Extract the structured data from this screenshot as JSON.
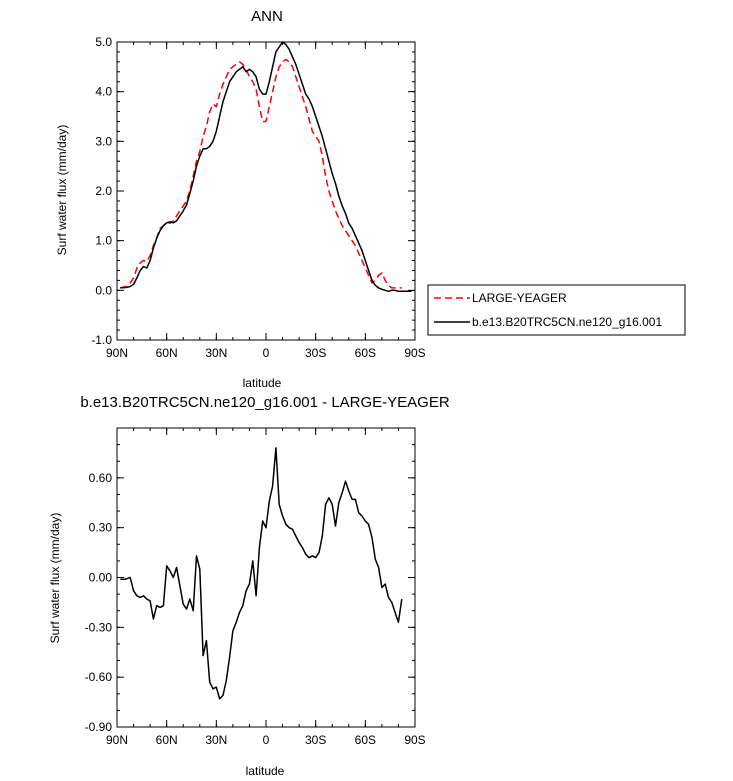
{
  "chart_data": [
    {
      "type": "line",
      "title": "ANN",
      "xlabel": "latitude",
      "ylabel": "Surf water flux (mm/day)",
      "xlim": [
        -90,
        90
      ],
      "ylim": [
        -1.0,
        5.0
      ],
      "x_tick_labels": [
        "90N",
        "60N",
        "30N",
        "0",
        "30S",
        "60S",
        "90S"
      ],
      "y_tick_labels": [
        "-1.0",
        "0.0",
        "1.0",
        "2.0",
        "3.0",
        "4.0",
        "5.0"
      ],
      "legend_position": "right",
      "series": [
        {
          "name": "LARGE-YEAGER",
          "color": "#ff0000",
          "dash": "dashed",
          "x": [
            -88,
            -84,
            -82,
            -80,
            -78,
            -76,
            -74,
            -72,
            -70,
            -68,
            -66,
            -64,
            -62,
            -60,
            -58,
            -56,
            -54,
            -52,
            -50,
            -48,
            -46,
            -44,
            -42,
            -40,
            -38,
            -36,
            -34,
            -32,
            -30,
            -28,
            -26,
            -24,
            -22,
            -20,
            -18,
            -16,
            -14,
            -12,
            -10,
            -8,
            -6,
            -4,
            -2,
            0,
            2,
            4,
            6,
            8,
            10,
            12,
            14,
            16,
            18,
            20,
            22,
            24,
            26,
            28,
            30,
            32,
            34,
            36,
            38,
            40,
            42,
            44,
            46,
            48,
            50,
            52,
            54,
            56,
            58,
            60,
            62,
            64,
            66,
            68,
            70,
            72,
            74,
            76,
            78,
            80,
            82
          ],
          "y": [
            0.05,
            0.08,
            0.15,
            0.25,
            0.45,
            0.55,
            0.6,
            0.58,
            0.7,
            0.9,
            1.05,
            1.25,
            1.3,
            1.38,
            1.35,
            1.4,
            1.5,
            1.6,
            1.7,
            1.8,
            2.0,
            2.3,
            2.6,
            2.8,
            3.1,
            3.3,
            3.6,
            3.75,
            3.7,
            3.95,
            4.15,
            4.3,
            4.45,
            4.5,
            4.55,
            4.6,
            4.55,
            4.45,
            4.3,
            4.2,
            4.05,
            3.7,
            3.4,
            3.4,
            3.7,
            4.0,
            4.3,
            4.5,
            4.6,
            4.65,
            4.6,
            4.5,
            4.3,
            4.1,
            3.9,
            3.7,
            3.45,
            3.2,
            3.1,
            3.0,
            2.7,
            2.3,
            2.0,
            1.8,
            1.6,
            1.45,
            1.3,
            1.2,
            1.1,
            1.0,
            0.9,
            0.75,
            0.6,
            0.45,
            0.3,
            0.15,
            0.2,
            0.3,
            0.35,
            0.2,
            0.1,
            0.05,
            0.05,
            0.05,
            0.05
          ]
        },
        {
          "name": "b.e13.B20TRC5CN.ne120_g16.001",
          "color": "#000000",
          "dash": "solid",
          "x": [
            -88,
            -84,
            -82,
            -80,
            -78,
            -76,
            -74,
            -72,
            -70,
            -68,
            -66,
            -64,
            -62,
            -60,
            -58,
            -56,
            -54,
            -52,
            -50,
            -48,
            -46,
            -44,
            -42,
            -40,
            -38,
            -36,
            -34,
            -32,
            -30,
            -28,
            -26,
            -24,
            -22,
            -20,
            -18,
            -16,
            -14,
            -12,
            -10,
            -8,
            -6,
            -4,
            -2,
            0,
            2,
            4,
            6,
            8,
            10,
            12,
            14,
            16,
            18,
            20,
            22,
            24,
            26,
            28,
            30,
            32,
            34,
            36,
            38,
            40,
            42,
            44,
            46,
            48,
            50,
            52,
            54,
            56,
            58,
            60,
            62,
            64,
            66,
            68,
            70,
            72,
            74,
            76,
            78,
            80,
            82,
            84,
            86,
            88
          ],
          "y": [
            0.05,
            0.06,
            0.08,
            0.12,
            0.25,
            0.4,
            0.48,
            0.45,
            0.6,
            0.85,
            1.05,
            1.2,
            1.3,
            1.36,
            1.38,
            1.36,
            1.4,
            1.5,
            1.6,
            1.72,
            1.95,
            2.2,
            2.5,
            2.7,
            2.85,
            2.85,
            2.9,
            3.0,
            3.2,
            3.5,
            3.8,
            4.0,
            4.2,
            4.3,
            4.4,
            4.45,
            4.5,
            4.4,
            4.45,
            4.4,
            4.3,
            4.05,
            3.95,
            3.95,
            4.2,
            4.5,
            4.8,
            4.9,
            5.0,
            4.95,
            4.85,
            4.7,
            4.55,
            4.35,
            4.15,
            3.95,
            3.85,
            3.7,
            3.5,
            3.3,
            3.1,
            2.85,
            2.6,
            2.35,
            2.15,
            1.9,
            1.7,
            1.55,
            1.35,
            1.25,
            1.1,
            0.95,
            0.8,
            0.6,
            0.4,
            0.2,
            0.1,
            0.05,
            0.02,
            0.0,
            -0.02,
            0.0,
            0.0,
            -0.02,
            -0.02,
            -0.02,
            -0.02,
            -0.02
          ]
        }
      ]
    },
    {
      "type": "line",
      "title": "b.e13.B20TRC5CN.ne120_g16.001 - LARGE-YEAGER",
      "xlabel": "latitude",
      "ylabel": "Surf water flux (mm/day)",
      "xlim": [
        -90,
        90
      ],
      "ylim": [
        -0.9,
        0.9
      ],
      "x_tick_labels": [
        "90N",
        "60N",
        "30N",
        "0",
        "30S",
        "60S",
        "90S"
      ],
      "y_tick_labels": [
        "-0.90",
        "-0.60",
        "-0.30",
        "0.00",
        "0.30",
        "0.60"
      ],
      "series": [
        {
          "color": "#000000",
          "dash": "solid",
          "x": [
            -88,
            -85,
            -82,
            -80,
            -78,
            -76,
            -74,
            -72,
            -70,
            -68,
            -66,
            -64,
            -62,
            -60,
            -58,
            -56,
            -54,
            -52,
            -50,
            -48,
            -46,
            -44,
            -42,
            -40,
            -38,
            -36,
            -34,
            -32,
            -30,
            -28,
            -26,
            -24,
            -22,
            -20,
            -18,
            -16,
            -14,
            -12,
            -10,
            -8,
            -6,
            -4,
            -2,
            0,
            2,
            4,
            6,
            8,
            10,
            12,
            14,
            16,
            18,
            20,
            22,
            24,
            26,
            28,
            30,
            32,
            34,
            36,
            38,
            40,
            42,
            44,
            46,
            48,
            50,
            52,
            54,
            56,
            58,
            60,
            62,
            64,
            66,
            68,
            70,
            72,
            74,
            76,
            78,
            80,
            82
          ],
          "y": [
            -0.01,
            -0.01,
            0.0,
            -0.08,
            -0.11,
            -0.12,
            -0.11,
            -0.13,
            -0.14,
            -0.25,
            -0.17,
            -0.18,
            -0.17,
            0.07,
            0.04,
            0.0,
            0.06,
            -0.05,
            -0.16,
            -0.19,
            -0.13,
            -0.2,
            0.13,
            0.05,
            -0.47,
            -0.38,
            -0.63,
            -0.67,
            -0.66,
            -0.73,
            -0.71,
            -0.62,
            -0.48,
            -0.32,
            -0.27,
            -0.21,
            -0.17,
            -0.08,
            -0.04,
            0.1,
            -0.11,
            0.18,
            0.34,
            0.3,
            0.46,
            0.55,
            0.78,
            0.44,
            0.37,
            0.32,
            0.3,
            0.29,
            0.25,
            0.21,
            0.18,
            0.14,
            0.12,
            0.13,
            0.12,
            0.15,
            0.25,
            0.44,
            0.48,
            0.44,
            0.31,
            0.45,
            0.51,
            0.58,
            0.52,
            0.47,
            0.47,
            0.39,
            0.37,
            0.34,
            0.32,
            0.24,
            0.11,
            0.06,
            -0.06,
            -0.04,
            -0.12,
            -0.15,
            -0.21,
            -0.27,
            -0.13
          ]
        }
      ]
    }
  ]
}
